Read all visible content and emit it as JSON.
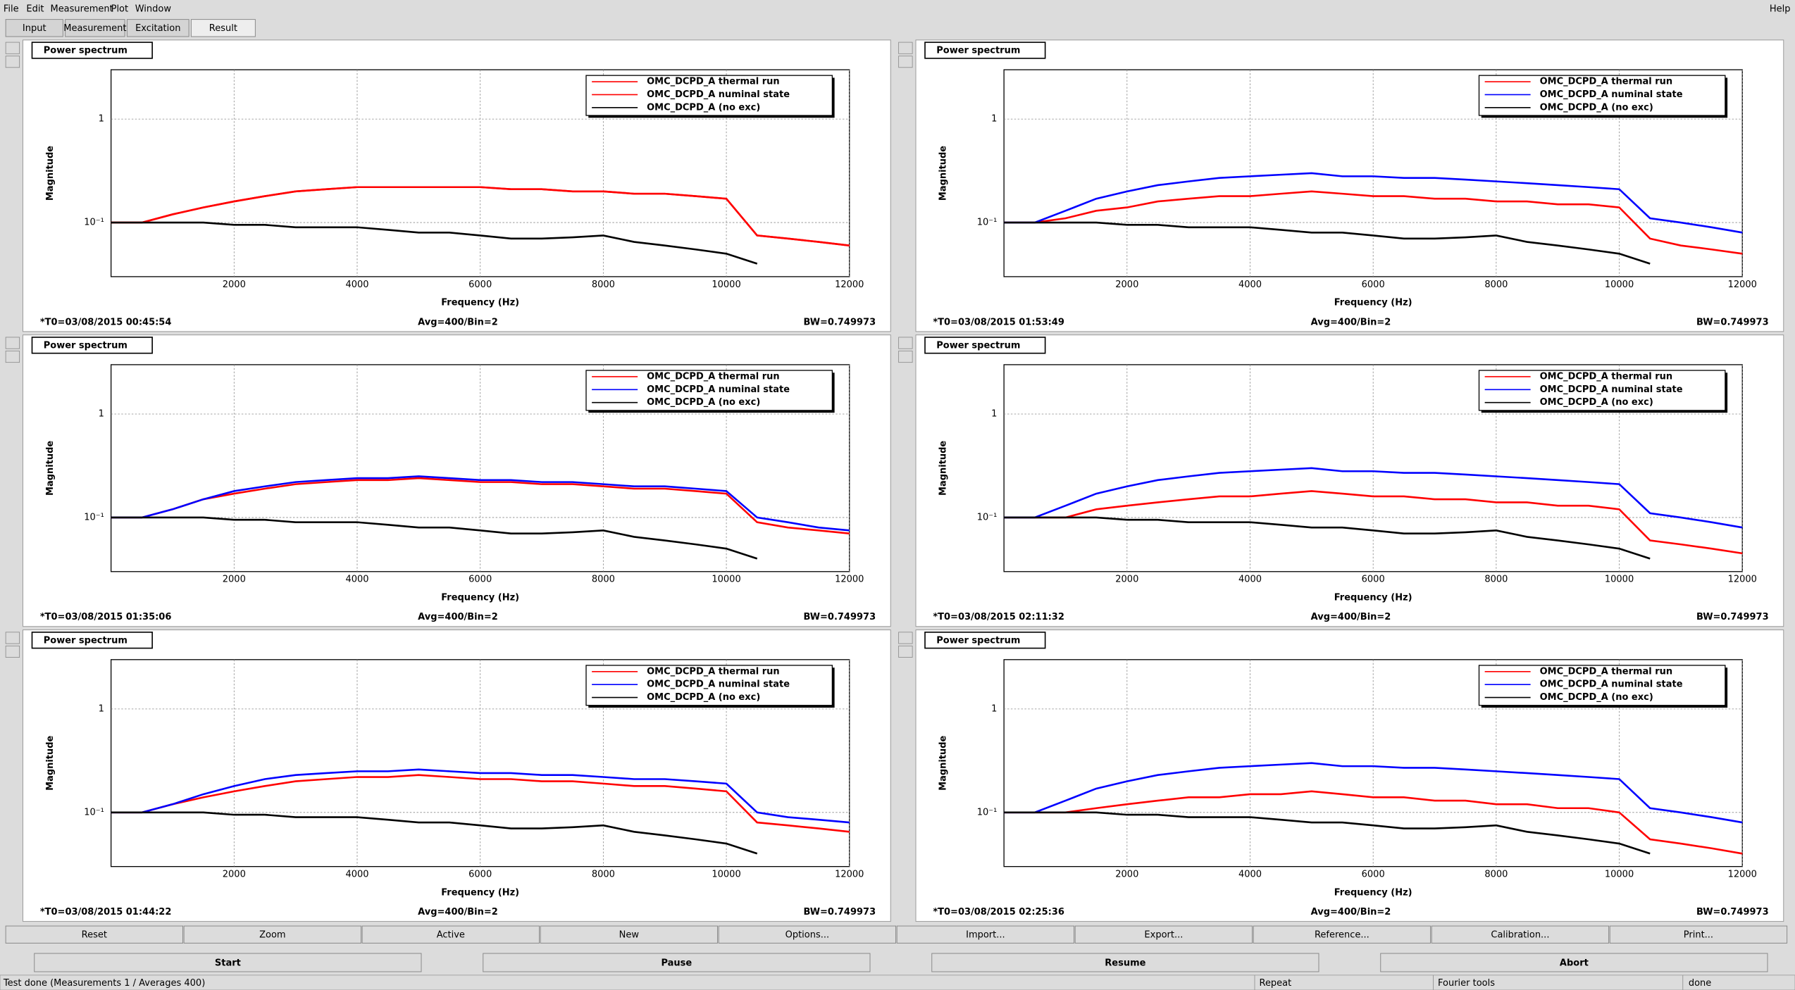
{
  "menu": [
    "File",
    "Edit",
    "Measurement",
    "Plot",
    "Window"
  ],
  "help": "Help",
  "tabs": [
    {
      "label": "Input",
      "selected": false
    },
    {
      "label": "Measurement",
      "selected": false
    },
    {
      "label": "Excitation",
      "selected": false
    },
    {
      "label": "Result",
      "selected": true
    }
  ],
  "chart_data": [
    {
      "type": "line",
      "title": "Power spectrum",
      "x_label": "Frequency (Hz)",
      "y_label": "Magnitude",
      "log_y": true,
      "grid": true,
      "legend": "upper right",
      "annotations": [
        "*T0=03/08/2015 00:45:54",
        "Avg=400/Bin=2",
        "BW=0.749973"
      ],
      "xlim": [
        0,
        12000
      ],
      "ylim": [
        0.03,
        3
      ],
      "xticks": [
        2000,
        4000,
        6000,
        8000,
        10000,
        12000
      ],
      "yticks": [
        {
          "value": 0.1,
          "label": "10⁻¹"
        },
        1
      ],
      "x": [
        0,
        500,
        1000,
        1500,
        2000,
        2500,
        3000,
        3500,
        4000,
        4500,
        5000,
        5500,
        6000,
        6500,
        7000,
        7500,
        8000,
        8500,
        9000,
        9500,
        10000,
        10500,
        11000,
        11500,
        12000
      ],
      "series": [
        {
          "name": "OMC_DCPD_A thermal run",
          "color": "#ff0000",
          "values": [
            0.1,
            0.1,
            0.12,
            0.14,
            0.16,
            0.18,
            0.2,
            0.21,
            0.22,
            0.22,
            0.22,
            0.22,
            0.22,
            0.21,
            0.21,
            0.2,
            0.2,
            0.19,
            0.19,
            0.18,
            0.17,
            0.075,
            0.07,
            0.065,
            0.06
          ]
        },
        {
          "name": "OMC_DCPD_A numinal state",
          "color": "#ff0000",
          "values": [
            0.1,
            0.1,
            0.12,
            0.14,
            0.16,
            0.18,
            0.2,
            0.21,
            0.22,
            0.22,
            0.22,
            0.22,
            0.22,
            0.21,
            0.21,
            0.2,
            0.2,
            0.19,
            0.19,
            0.18,
            0.17,
            0.075,
            0.07,
            0.065,
            0.06
          ]
        },
        {
          "name": "OMC_DCPD_A (no exc)",
          "color": "#000000",
          "values": [
            0.1,
            0.1,
            0.1,
            0.1,
            0.095,
            0.095,
            0.09,
            0.09,
            0.09,
            0.085,
            0.08,
            0.08,
            0.075,
            0.07,
            0.07,
            0.072,
            0.075,
            0.065,
            0.06,
            0.055,
            0.05,
            0.04,
            null,
            null,
            null
          ]
        }
      ]
    },
    {
      "type": "line",
      "title": "Power spectrum",
      "x_label": "Frequency (Hz)",
      "y_label": "Magnitude",
      "log_y": true,
      "grid": true,
      "legend": "upper right",
      "annotations": [
        "*T0=03/08/2015 01:53:49",
        "Avg=400/Bin=2",
        "BW=0.749973"
      ],
      "xlim": [
        0,
        12000
      ],
      "ylim": [
        0.03,
        3
      ],
      "xticks": [
        2000,
        4000,
        6000,
        8000,
        10000,
        12000
      ],
      "yticks": [
        {
          "value": 0.1,
          "label": "10⁻¹"
        },
        1
      ],
      "x": [
        0,
        500,
        1000,
        1500,
        2000,
        2500,
        3000,
        3500,
        4000,
        4500,
        5000,
        5500,
        6000,
        6500,
        7000,
        7500,
        8000,
        8500,
        9000,
        9500,
        10000,
        10500,
        11000,
        11500,
        12000
      ],
      "series": [
        {
          "name": "OMC_DCPD_A thermal run",
          "color": "#ff0000",
          "values": [
            0.1,
            0.1,
            0.11,
            0.13,
            0.14,
            0.16,
            0.17,
            0.18,
            0.18,
            0.19,
            0.2,
            0.19,
            0.18,
            0.18,
            0.17,
            0.17,
            0.16,
            0.16,
            0.15,
            0.15,
            0.14,
            0.07,
            0.06,
            0.055,
            0.05
          ]
        },
        {
          "name": "OMC_DCPD_A numinal state",
          "color": "#0000ff",
          "values": [
            0.1,
            0.1,
            0.13,
            0.17,
            0.2,
            0.23,
            0.25,
            0.27,
            0.28,
            0.29,
            0.3,
            0.28,
            0.28,
            0.27,
            0.27,
            0.26,
            0.25,
            0.24,
            0.23,
            0.22,
            0.21,
            0.11,
            0.1,
            0.09,
            0.08
          ]
        },
        {
          "name": "OMC_DCPD_A (no exc)",
          "color": "#000000",
          "values": [
            0.1,
            0.1,
            0.1,
            0.1,
            0.095,
            0.095,
            0.09,
            0.09,
            0.09,
            0.085,
            0.08,
            0.08,
            0.075,
            0.07,
            0.07,
            0.072,
            0.075,
            0.065,
            0.06,
            0.055,
            0.05,
            0.04,
            null,
            null,
            null
          ]
        }
      ]
    },
    {
      "type": "line",
      "title": "Power spectrum",
      "x_label": "Frequency (Hz)",
      "y_label": "Magnitude",
      "log_y": true,
      "grid": true,
      "legend": "upper right",
      "annotations": [
        "*T0=03/08/2015 01:35:06",
        "Avg=400/Bin=2",
        "BW=0.749973"
      ],
      "xlim": [
        0,
        12000
      ],
      "ylim": [
        0.03,
        3
      ],
      "xticks": [
        2000,
        4000,
        6000,
        8000,
        10000,
        12000
      ],
      "yticks": [
        {
          "value": 0.1,
          "label": "10⁻¹"
        },
        1
      ],
      "x": [
        0,
        500,
        1000,
        1500,
        2000,
        2500,
        3000,
        3500,
        4000,
        4500,
        5000,
        5500,
        6000,
        6500,
        7000,
        7500,
        8000,
        8500,
        9000,
        9500,
        10000,
        10500,
        11000,
        11500,
        12000
      ],
      "series": [
        {
          "name": "OMC_DCPD_A thermal run",
          "color": "#ff0000",
          "values": [
            0.1,
            0.1,
            0.12,
            0.15,
            0.17,
            0.19,
            0.21,
            0.22,
            0.23,
            0.23,
            0.24,
            0.23,
            0.22,
            0.22,
            0.21,
            0.21,
            0.2,
            0.19,
            0.19,
            0.18,
            0.17,
            0.09,
            0.08,
            0.075,
            0.07
          ]
        },
        {
          "name": "OMC_DCPD_A numinal state",
          "color": "#0000ff",
          "values": [
            0.1,
            0.1,
            0.12,
            0.15,
            0.18,
            0.2,
            0.22,
            0.23,
            0.24,
            0.24,
            0.25,
            0.24,
            0.23,
            0.23,
            0.22,
            0.22,
            0.21,
            0.2,
            0.2,
            0.19,
            0.18,
            0.1,
            0.09,
            0.08,
            0.075
          ]
        },
        {
          "name": "OMC_DCPD_A (no exc)",
          "color": "#000000",
          "values": [
            0.1,
            0.1,
            0.1,
            0.1,
            0.095,
            0.095,
            0.09,
            0.09,
            0.09,
            0.085,
            0.08,
            0.08,
            0.075,
            0.07,
            0.07,
            0.072,
            0.075,
            0.065,
            0.06,
            0.055,
            0.05,
            0.04,
            null,
            null,
            null
          ]
        }
      ]
    },
    {
      "type": "line",
      "title": "Power spectrum",
      "x_label": "Frequency (Hz)",
      "y_label": "Magnitude",
      "log_y": true,
      "grid": true,
      "legend": "upper right",
      "annotations": [
        "*T0=03/08/2015 02:11:32",
        "Avg=400/Bin=2",
        "BW=0.749973"
      ],
      "xlim": [
        0,
        12000
      ],
      "ylim": [
        0.03,
        3
      ],
      "xticks": [
        2000,
        4000,
        6000,
        8000,
        10000,
        12000
      ],
      "yticks": [
        {
          "value": 0.1,
          "label": "10⁻¹"
        },
        1
      ],
      "x": [
        0,
        500,
        1000,
        1500,
        2000,
        2500,
        3000,
        3500,
        4000,
        4500,
        5000,
        5500,
        6000,
        6500,
        7000,
        7500,
        8000,
        8500,
        9000,
        9500,
        10000,
        10500,
        11000,
        11500,
        12000
      ],
      "series": [
        {
          "name": "OMC_DCPD_A thermal run",
          "color": "#ff0000",
          "values": [
            0.1,
            0.1,
            0.1,
            0.12,
            0.13,
            0.14,
            0.15,
            0.16,
            0.16,
            0.17,
            0.18,
            0.17,
            0.16,
            0.16,
            0.15,
            0.15,
            0.14,
            0.14,
            0.13,
            0.13,
            0.12,
            0.06,
            0.055,
            0.05,
            0.045
          ]
        },
        {
          "name": "OMC_DCPD_A numinal state",
          "color": "#0000ff",
          "values": [
            0.1,
            0.1,
            0.13,
            0.17,
            0.2,
            0.23,
            0.25,
            0.27,
            0.28,
            0.29,
            0.3,
            0.28,
            0.28,
            0.27,
            0.27,
            0.26,
            0.25,
            0.24,
            0.23,
            0.22,
            0.21,
            0.11,
            0.1,
            0.09,
            0.08
          ]
        },
        {
          "name": "OMC_DCPD_A (no exc)",
          "color": "#000000",
          "values": [
            0.1,
            0.1,
            0.1,
            0.1,
            0.095,
            0.095,
            0.09,
            0.09,
            0.09,
            0.085,
            0.08,
            0.08,
            0.075,
            0.07,
            0.07,
            0.072,
            0.075,
            0.065,
            0.06,
            0.055,
            0.05,
            0.04,
            null,
            null,
            null
          ]
        }
      ]
    },
    {
      "type": "line",
      "title": "Power spectrum",
      "x_label": "Frequency (Hz)",
      "y_label": "Magnitude",
      "log_y": true,
      "grid": true,
      "legend": "upper right",
      "annotations": [
        "*T0=03/08/2015 01:44:22",
        "Avg=400/Bin=2",
        "BW=0.749973"
      ],
      "xlim": [
        0,
        12000
      ],
      "ylim": [
        0.03,
        3
      ],
      "xticks": [
        2000,
        4000,
        6000,
        8000,
        10000,
        12000
      ],
      "yticks": [
        {
          "value": 0.1,
          "label": "10⁻¹"
        },
        1
      ],
      "x": [
        0,
        500,
        1000,
        1500,
        2000,
        2500,
        3000,
        3500,
        4000,
        4500,
        5000,
        5500,
        6000,
        6500,
        7000,
        7500,
        8000,
        8500,
        9000,
        9500,
        10000,
        10500,
        11000,
        11500,
        12000
      ],
      "series": [
        {
          "name": "OMC_DCPD_A thermal run",
          "color": "#ff0000",
          "values": [
            0.1,
            0.1,
            0.12,
            0.14,
            0.16,
            0.18,
            0.2,
            0.21,
            0.22,
            0.22,
            0.23,
            0.22,
            0.21,
            0.21,
            0.2,
            0.2,
            0.19,
            0.18,
            0.18,
            0.17,
            0.16,
            0.08,
            0.075,
            0.07,
            0.065
          ]
        },
        {
          "name": "OMC_DCPD_A numinal state",
          "color": "#0000ff",
          "values": [
            0.1,
            0.1,
            0.12,
            0.15,
            0.18,
            0.21,
            0.23,
            0.24,
            0.25,
            0.25,
            0.26,
            0.25,
            0.24,
            0.24,
            0.23,
            0.23,
            0.22,
            0.21,
            0.21,
            0.2,
            0.19,
            0.1,
            0.09,
            0.085,
            0.08
          ]
        },
        {
          "name": "OMC_DCPD_A (no exc)",
          "color": "#000000",
          "values": [
            0.1,
            0.1,
            0.1,
            0.1,
            0.095,
            0.095,
            0.09,
            0.09,
            0.09,
            0.085,
            0.08,
            0.08,
            0.075,
            0.07,
            0.07,
            0.072,
            0.075,
            0.065,
            0.06,
            0.055,
            0.05,
            0.04,
            null,
            null,
            null
          ]
        }
      ]
    },
    {
      "type": "line",
      "title": "Power spectrum",
      "x_label": "Frequency (Hz)",
      "y_label": "Magnitude",
      "log_y": true,
      "grid": true,
      "legend": "upper right",
      "annotations": [
        "*T0=03/08/2015 02:25:36",
        "Avg=400/Bin=2",
        "BW=0.749973"
      ],
      "xlim": [
        0,
        12000
      ],
      "ylim": [
        0.03,
        3
      ],
      "xticks": [
        2000,
        4000,
        6000,
        8000,
        10000,
        12000
      ],
      "yticks": [
        {
          "value": 0.1,
          "label": "10⁻¹"
        },
        1
      ],
      "x": [
        0,
        500,
        1000,
        1500,
        2000,
        2500,
        3000,
        3500,
        4000,
        4500,
        5000,
        5500,
        6000,
        6500,
        7000,
        7500,
        8000,
        8500,
        9000,
        9500,
        10000,
        10500,
        11000,
        11500,
        12000
      ],
      "series": [
        {
          "name": "OMC_DCPD_A thermal run",
          "color": "#ff0000",
          "values": [
            0.1,
            0.1,
            0.1,
            0.11,
            0.12,
            0.13,
            0.14,
            0.14,
            0.15,
            0.15,
            0.16,
            0.15,
            0.14,
            0.14,
            0.13,
            0.13,
            0.12,
            0.12,
            0.11,
            0.11,
            0.1,
            0.055,
            0.05,
            0.045,
            0.04
          ]
        },
        {
          "name": "OMC_DCPD_A numinal state",
          "color": "#0000ff",
          "values": [
            0.1,
            0.1,
            0.13,
            0.17,
            0.2,
            0.23,
            0.25,
            0.27,
            0.28,
            0.29,
            0.3,
            0.28,
            0.28,
            0.27,
            0.27,
            0.26,
            0.25,
            0.24,
            0.23,
            0.22,
            0.21,
            0.11,
            0.1,
            0.09,
            0.08
          ]
        },
        {
          "name": "OMC_DCPD_A (no exc)",
          "color": "#000000",
          "values": [
            0.1,
            0.1,
            0.1,
            0.1,
            0.095,
            0.095,
            0.09,
            0.09,
            0.09,
            0.085,
            0.08,
            0.08,
            0.075,
            0.07,
            0.07,
            0.072,
            0.075,
            0.065,
            0.06,
            0.055,
            0.05,
            0.04,
            null,
            null,
            null
          ]
        }
      ]
    }
  ],
  "buttons": [
    "Reset",
    "Zoom",
    "Active",
    "New",
    "Options...",
    "Import...",
    "Export...",
    "Reference...",
    "Calibration...",
    "Print..."
  ],
  "run_buttons": [
    {
      "label": "Start",
      "enabled": true
    },
    {
      "label": "Pause",
      "enabled": false
    },
    {
      "label": "Resume",
      "enabled": false
    },
    {
      "label": "Abort",
      "enabled": false
    }
  ],
  "status": {
    "message": "Test done (Measurements 1 / Averages 400)",
    "repeat": "Repeat",
    "tool": "Fourier tools",
    "state": "done"
  }
}
